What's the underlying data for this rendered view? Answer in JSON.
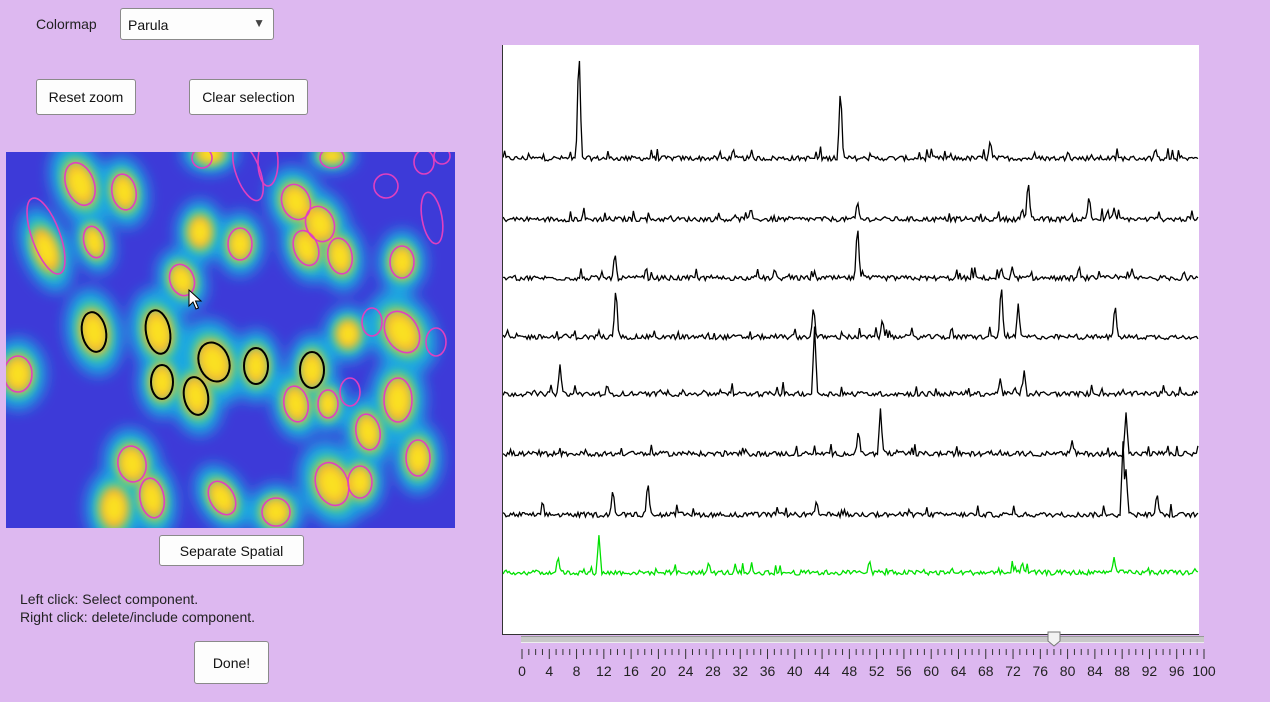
{
  "controls": {
    "colormap_label": "Colormap",
    "colormap_value": "Parula",
    "reset_zoom": "Reset zoom",
    "clear_selection": "Clear selection",
    "separate_spatial": "Separate Spatial",
    "done": "Done!"
  },
  "help": {
    "line1": "Left click: Select component.",
    "line2": "Right click: delete/include component."
  },
  "slider": {
    "min": 0,
    "max": 100,
    "value": 78,
    "labels": [
      "0",
      "4",
      "8",
      "12",
      "16",
      "20",
      "24",
      "28",
      "32",
      "36",
      "40",
      "44",
      "48",
      "52",
      "56",
      "60",
      "64",
      "68",
      "72",
      "76",
      "80",
      "84",
      "88",
      "92",
      "96",
      "100"
    ]
  },
  "colors": {
    "background": "#ddb8f0",
    "unselected_outline": "#e040c0",
    "selected_outline": "#000000",
    "trace_selected": "#000000",
    "trace_background": "#00e000"
  },
  "traces": {
    "count": 8,
    "colors": [
      "#000000",
      "#000000",
      "#000000",
      "#000000",
      "#000000",
      "#000000",
      "#000000",
      "#00e000"
    ]
  }
}
